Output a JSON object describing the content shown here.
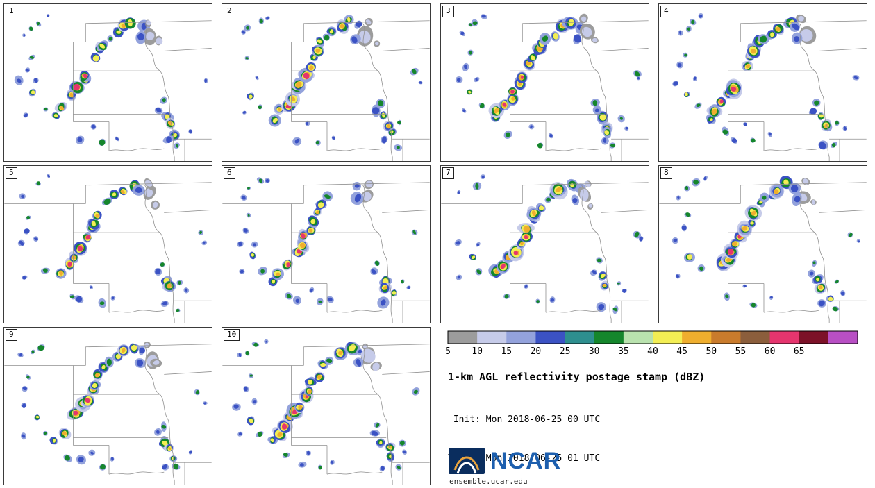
{
  "panels": [
    {
      "label": "1"
    },
    {
      "label": "2"
    },
    {
      "label": "3"
    },
    {
      "label": "4"
    },
    {
      "label": "5"
    },
    {
      "label": "6"
    },
    {
      "label": "7"
    },
    {
      "label": "8"
    },
    {
      "label": "9"
    },
    {
      "label": "10"
    }
  ],
  "title": "1-km AGL reflectivity postage stamp (dBZ)",
  "init_line": " Init: Mon 2018-06-25 00 UTC",
  "valid_line": "Valid: Mon 2018-06-25 01 UTC",
  "logo": {
    "name": "NCAR",
    "url": "ensemble.ucar.edu"
  },
  "colorbar": {
    "units": "dBZ",
    "tick_labels": [
      "5",
      "10",
      "15",
      "20",
      "25",
      "30",
      "35",
      "40",
      "45",
      "50",
      "55",
      "60",
      "65"
    ],
    "colors": [
      "#9c9c9c",
      "#c6cbe9",
      "#93a2dc",
      "#3b52c4",
      "#2e8f8f",
      "#15862c",
      "#b9e2ae",
      "#f3ee54",
      "#efae2e",
      "#c97b2c",
      "#8b5e3c",
      "#e5356e",
      "#7c1128",
      "#b84fc4"
    ]
  },
  "map": {
    "line_color": "#8f8f8f",
    "state_lines": [
      "M118,28 L301,24",
      "M204,28 C212,40 197,54 210,66 C221,78 213,88 226,97",
      "M232,68 L301,64",
      "M0,55 L118,55",
      "M118,28 L118,55",
      "M100,55 L100,171",
      "M100,97 L226,97",
      "M100,160 L238,160",
      "M100,171 L152,171",
      "M152,171 L152,213",
      "M152,213 C165,209 176,216 191,211 C206,207 217,214 232,210",
      "M226,97 C234,106 230,122 238,134 C242,148 238,164 244,178 C248,194 242,208 247,222 L247,228",
      "M247,196 L301,196",
      "M262,196 L262,228"
    ],
    "palette": {
      "c5": "#9c9c9c",
      "c10": "#c6cbe9",
      "c15": "#93a2dc",
      "c20": "#3b52c4",
      "c25": "#2e8f8f",
      "c30": "#15862c",
      "c35": "#b9e2ae",
      "c40": "#f3ee54",
      "c45": "#efae2e",
      "c50": "#c97b2c",
      "c55": "#8b5e3c",
      "c60": "#e5356e",
      "c65": "#7c1128"
    },
    "cell_types": {
      "w": [
        "c15",
        "c20"
      ],
      "g": [
        "c15",
        "c30"
      ],
      "m": [
        "c15",
        "c20",
        "c30",
        "c40"
      ],
      "s": [
        "c10",
        "c15",
        "c20",
        "c30",
        "c40",
        "c45"
      ],
      "i": [
        "c10",
        "c15",
        "c20",
        "c30",
        "c40",
        "c45",
        "c60"
      ],
      "st": [
        "c5",
        "c10"
      ]
    },
    "cells": [
      [
        76,
        166,
        6,
        "m"
      ],
      [
        84,
        154,
        7,
        "s"
      ],
      [
        92,
        144,
        7,
        "i"
      ],
      [
        100,
        134,
        7,
        "s"
      ],
      [
        107,
        124,
        8,
        "i"
      ],
      [
        114,
        113,
        8,
        "s"
      ],
      [
        120,
        102,
        8,
        "i"
      ],
      [
        126,
        91,
        7,
        "s"
      ],
      [
        132,
        80,
        6,
        "m"
      ],
      [
        139,
        68,
        7,
        "s"
      ],
      [
        146,
        57,
        6,
        "m"
      ],
      [
        152,
        48,
        5,
        "g"
      ],
      [
        162,
        42,
        6,
        "m"
      ],
      [
        174,
        33,
        8,
        "s"
      ],
      [
        187,
        27,
        7,
        "m"
      ],
      [
        199,
        32,
        6,
        "w"
      ],
      [
        211,
        44,
        9,
        "st"
      ],
      [
        196,
        50,
        6,
        "w"
      ],
      [
        209,
        25,
        5,
        "st"
      ],
      [
        220,
        55,
        5,
        "st"
      ],
      [
        52,
        26,
        4,
        "g"
      ],
      [
        64,
        17,
        3,
        "w"
      ],
      [
        28,
        42,
        3,
        "w"
      ],
      [
        40,
        33,
        3,
        "g"
      ],
      [
        33,
        92,
        4,
        "w"
      ],
      [
        24,
        112,
        4,
        "w"
      ],
      [
        44,
        131,
        5,
        "m"
      ],
      [
        58,
        150,
        4,
        "g"
      ],
      [
        29,
        158,
        3,
        "w"
      ],
      [
        50,
        110,
        3,
        "w"
      ],
      [
        38,
        74,
        3,
        "g"
      ],
      [
        96,
        186,
        4,
        "g"
      ],
      [
        112,
        196,
        4,
        "w"
      ],
      [
        140,
        201,
        4,
        "g"
      ],
      [
        160,
        192,
        3,
        "w"
      ],
      [
        127,
        178,
        3,
        "w"
      ],
      [
        224,
        152,
        5,
        "w"
      ],
      [
        233,
        164,
        6,
        "m"
      ],
      [
        239,
        176,
        6,
        "s"
      ],
      [
        245,
        189,
        5,
        "m"
      ],
      [
        236,
        201,
        5,
        "w"
      ],
      [
        252,
        206,
        4,
        "g"
      ],
      [
        228,
        140,
        4,
        "g"
      ],
      [
        281,
        97,
        4,
        "g"
      ],
      [
        290,
        110,
        3,
        "w"
      ],
      [
        268,
        181,
        3,
        "w"
      ],
      [
        259,
        170,
        3,
        "g"
      ]
    ]
  }
}
